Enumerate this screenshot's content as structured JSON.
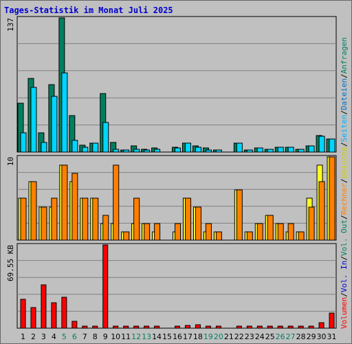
{
  "title": "Tages-Statistik im Monat Juli 2025",
  "colors": {
    "background": "#c0c0c0",
    "title": "#0000cc",
    "anfragen": "#007f5f",
    "dateien": "#00d5ff",
    "seiten": "#00d5ff",
    "besuche": "#ffff20",
    "rechner": "#ff8000",
    "volumen": "#ff0000",
    "weekend_label": "#008060",
    "weekday_label": "#000000"
  },
  "chart_data": [
    {
      "type": "bar",
      "panel": "hits",
      "ymax_label": "137",
      "ylim": [
        0,
        137
      ],
      "categories": [
        "1",
        "2",
        "3",
        "4",
        "5",
        "6",
        "7",
        "8",
        "9",
        "10",
        "11",
        "12",
        "13",
        "14",
        "15",
        "16",
        "17",
        "18",
        "19",
        "20",
        "21",
        "22",
        "23",
        "24",
        "25",
        "26",
        "27",
        "28",
        "29",
        "30",
        "31"
      ],
      "weekend_days": [
        5,
        6,
        12,
        13,
        19,
        20,
        26,
        27
      ],
      "series": [
        {
          "name": "Anfragen",
          "values": [
            50,
            75,
            20,
            69,
            137,
            37,
            7,
            9,
            60,
            10,
            2,
            6,
            3,
            4,
            0,
            5,
            9,
            6,
            4,
            2,
            0,
            9,
            2,
            4,
            3,
            5,
            5,
            3,
            6,
            17,
            13
          ]
        },
        {
          "name": "Dateien",
          "values": [
            20,
            66,
            10,
            57,
            81,
            12,
            5,
            9,
            30,
            3,
            2,
            3,
            2,
            3,
            0,
            4,
            9,
            5,
            2,
            2,
            0,
            9,
            2,
            4,
            3,
            5,
            5,
            3,
            6,
            16,
            13
          ]
        }
      ],
      "grid": true
    },
    {
      "type": "bar",
      "panel": "visits",
      "ymax_label": "10",
      "ylim": [
        0,
        10
      ],
      "categories": [
        "1",
        "2",
        "3",
        "4",
        "5",
        "6",
        "7",
        "8",
        "9",
        "10",
        "11",
        "12",
        "13",
        "14",
        "15",
        "16",
        "17",
        "18",
        "19",
        "20",
        "21",
        "22",
        "23",
        "24",
        "25",
        "26",
        "27",
        "28",
        "29",
        "30",
        "31"
      ],
      "series": [
        {
          "name": "Besuche",
          "values": [
            5,
            7,
            4,
            4,
            9,
            7,
            5,
            5,
            2,
            2,
            1,
            2,
            2,
            1,
            0,
            1,
            5,
            4,
            1,
            1,
            0,
            6,
            1,
            2,
            3,
            2,
            1,
            1,
            5,
            9,
            10
          ]
        },
        {
          "name": "Rechner",
          "values": [
            5,
            7,
            4,
            5,
            9,
            8,
            5,
            5,
            3,
            9,
            1,
            5,
            2,
            2,
            0,
            2,
            5,
            4,
            2,
            1,
            0,
            6,
            1,
            2,
            3,
            2,
            2,
            1,
            4,
            7,
            10
          ]
        }
      ],
      "grid": true
    },
    {
      "type": "bar",
      "panel": "volume",
      "ymax_label": "69.55 KB",
      "ylim": [
        0,
        69.55
      ],
      "categories": [
        "1",
        "2",
        "3",
        "4",
        "5",
        "6",
        "7",
        "8",
        "9",
        "10",
        "11",
        "12",
        "13",
        "14",
        "15",
        "16",
        "17",
        "18",
        "19",
        "20",
        "21",
        "22",
        "23",
        "24",
        "25",
        "26",
        "27",
        "28",
        "29",
        "30",
        "31"
      ],
      "series": [
        {
          "name": "Volumen",
          "values": [
            24,
            17,
            36,
            21,
            26,
            6,
            2,
            2,
            69.55,
            1.5,
            1.5,
            1.5,
            1.5,
            1.5,
            0,
            2,
            2.5,
            3,
            1.5,
            1.5,
            0,
            2,
            1.5,
            1.5,
            1.5,
            2,
            2,
            1.5,
            1.5,
            4.5,
            12.5
          ]
        }
      ],
      "grid": true
    }
  ],
  "right_legend": [
    {
      "text": "Volumen",
      "color": "#ff0000"
    },
    {
      "text": "/",
      "color": "#000000"
    },
    {
      "text": "Vol. In",
      "color": "#0000cc"
    },
    {
      "text": "/",
      "color": "#000000"
    },
    {
      "text": "Vol. Out",
      "color": "#008060"
    },
    {
      "text": "/",
      "color": "#000000"
    },
    {
      "text": "Rechner",
      "color": "#ff8000"
    },
    {
      "text": "/",
      "color": "#000000"
    },
    {
      "text": "Besuche",
      "color": "#d0d000"
    },
    {
      "text": "/",
      "color": "#000000"
    },
    {
      "text": "Seiten",
      "color": "#00b0ff"
    },
    {
      "text": "/",
      "color": "#000000"
    },
    {
      "text": "Dateien",
      "color": "#0070c0"
    },
    {
      "text": "/",
      "color": "#000000"
    },
    {
      "text": "Anfragen",
      "color": "#007f5f"
    }
  ]
}
